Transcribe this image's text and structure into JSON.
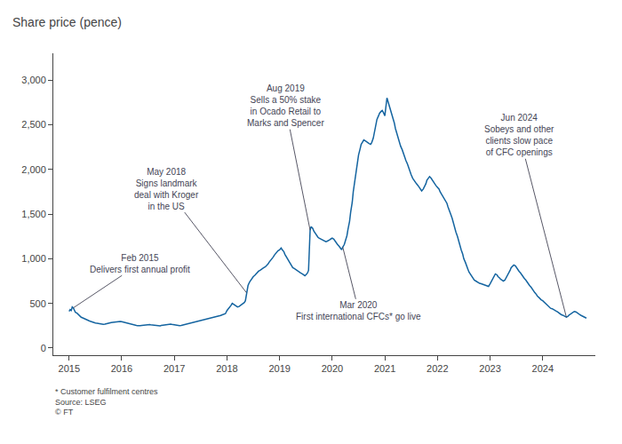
{
  "chart_data": {
    "type": "line",
    "title": "Share price (pence)",
    "color": "#1464a0",
    "grid": false,
    "xlim": [
      2014.7,
      2025.0
    ],
    "xticks": [
      2015,
      2016,
      2017,
      2018,
      2019,
      2020,
      2021,
      2022,
      2023,
      2024
    ],
    "ylim": [
      -80,
      3300
    ],
    "yticks": [
      0,
      500,
      {
        "value": 1000,
        "label": "1,000"
      },
      {
        "value": 1500,
        "label": "1,500"
      },
      {
        "value": 2000,
        "label": "2,000"
      },
      {
        "value": 2500,
        "label": "2,500"
      },
      {
        "value": 3000,
        "label": "3,000"
      }
    ],
    "annotations": [
      {
        "text": "Feb 2015\nDelivers first annual profit",
        "x": 2015.08,
        "y": 450
      },
      {
        "text": "May 2018\nSigns landmark\ndeal with Kroger\nin the US",
        "x": 2018.37,
        "y": 620
      },
      {
        "text": "Aug 2019\nSells a 50% stake\nin Ocado Retail to\nMarks and Spencer",
        "x": 2019.58,
        "y": 1320
      },
      {
        "text": "Mar 2020\nFirst international CFCs* go live",
        "x": 2020.2,
        "y": 1130
      },
      {
        "text": "Jun 2024\nSobeys and other\nclients slow pace\nof CFC openings",
        "x": 2024.45,
        "y": 345
      }
    ],
    "footnotes": [
      "* Customer fulfilment centres",
      "Source: LSEG",
      "© FT"
    ],
    "x": [
      2015.0,
      2015.02,
      2015.04,
      2015.06,
      2015.08,
      2015.1,
      2015.12,
      2015.15,
      2015.18,
      2015.2,
      2015.23,
      2015.25,
      2015.28,
      2015.3,
      2015.33,
      2015.35,
      2015.38,
      2015.4,
      2015.42,
      2015.45,
      2015.48,
      2015.5,
      2015.53,
      2015.55,
      2015.58,
      2015.6,
      2015.63,
      2015.65,
      2015.68,
      2015.7,
      2015.73,
      2015.75,
      2015.78,
      2015.8,
      2015.83,
      2015.85,
      2015.88,
      2015.9,
      2015.92,
      2015.95,
      2015.97,
      2016.0,
      2016.03,
      2016.05,
      2016.08,
      2016.1,
      2016.13,
      2016.15,
      2016.18,
      2016.2,
      2016.23,
      2016.25,
      2016.28,
      2016.3,
      2016.33,
      2016.35,
      2016.38,
      2016.4,
      2016.43,
      2016.45,
      2016.48,
      2016.5,
      2016.53,
      2016.55,
      2016.58,
      2016.6,
      2016.63,
      2016.65,
      2016.68,
      2016.7,
      2016.73,
      2016.75,
      2016.78,
      2016.8,
      2016.83,
      2016.85,
      2016.88,
      2016.9,
      2016.93,
      2016.95,
      2016.97,
      2017.0,
      2017.03,
      2017.05,
      2017.08,
      2017.1,
      2017.13,
      2017.15,
      2017.18,
      2017.2,
      2017.23,
      2017.25,
      2017.28,
      2017.3,
      2017.33,
      2017.35,
      2017.38,
      2017.4,
      2017.43,
      2017.45,
      2017.48,
      2017.5,
      2017.53,
      2017.55,
      2017.58,
      2017.6,
      2017.63,
      2017.65,
      2017.68,
      2017.7,
      2017.73,
      2017.75,
      2017.78,
      2017.8,
      2017.83,
      2017.85,
      2017.88,
      2017.9,
      2017.93,
      2017.95,
      2017.97,
      2018.0,
      2018.03,
      2018.05,
      2018.08,
      2018.1,
      2018.13,
      2018.15,
      2018.18,
      2018.2,
      2018.23,
      2018.25,
      2018.28,
      2018.3,
      2018.33,
      2018.35,
      2018.37,
      2018.4,
      2018.43,
      2018.45,
      2018.48,
      2018.5,
      2018.53,
      2018.55,
      2018.58,
      2018.6,
      2018.63,
      2018.65,
      2018.68,
      2018.7,
      2018.73,
      2018.75,
      2018.78,
      2018.8,
      2018.83,
      2018.85,
      2018.88,
      2018.9,
      2018.93,
      2018.95,
      2018.97,
      2019.0,
      2019.03,
      2019.05,
      2019.08,
      2019.1,
      2019.13,
      2019.15,
      2019.18,
      2019.2,
      2019.23,
      2019.25,
      2019.28,
      2019.3,
      2019.33,
      2019.35,
      2019.38,
      2019.4,
      2019.43,
      2019.45,
      2019.48,
      2019.5,
      2019.53,
      2019.55,
      2019.58,
      2019.6,
      2019.63,
      2019.65,
      2019.68,
      2019.7,
      2019.73,
      2019.75,
      2019.78,
      2019.8,
      2019.83,
      2019.85,
      2019.88,
      2019.9,
      2019.93,
      2019.95,
      2019.97,
      2020.0,
      2020.03,
      2020.05,
      2020.08,
      2020.1,
      2020.13,
      2020.15,
      2020.18,
      2020.2,
      2020.23,
      2020.25,
      2020.28,
      2020.3,
      2020.33,
      2020.35,
      2020.38,
      2020.4,
      2020.43,
      2020.45,
      2020.48,
      2020.5,
      2020.53,
      2020.55,
      2020.58,
      2020.6,
      2020.63,
      2020.65,
      2020.68,
      2020.7,
      2020.73,
      2020.75,
      2020.78,
      2020.8,
      2020.83,
      2020.85,
      2020.88,
      2020.9,
      2020.93,
      2020.95,
      2020.97,
      2021.0,
      2021.02,
      2021.04,
      2021.06,
      2021.08,
      2021.1,
      2021.13,
      2021.15,
      2021.18,
      2021.2,
      2021.23,
      2021.25,
      2021.28,
      2021.3,
      2021.33,
      2021.35,
      2021.38,
      2021.4,
      2021.43,
      2021.45,
      2021.48,
      2021.5,
      2021.53,
      2021.55,
      2021.58,
      2021.6,
      2021.63,
      2021.65,
      2021.68,
      2021.7,
      2021.73,
      2021.75,
      2021.78,
      2021.8,
      2021.83,
      2021.85,
      2021.88,
      2021.9,
      2021.93,
      2021.95,
      2021.97,
      2022.0,
      2022.03,
      2022.05,
      2022.08,
      2022.1,
      2022.13,
      2022.15,
      2022.18,
      2022.2,
      2022.23,
      2022.25,
      2022.28,
      2022.3,
      2022.33,
      2022.35,
      2022.38,
      2022.4,
      2022.43,
      2022.45,
      2022.48,
      2022.5,
      2022.53,
      2022.55,
      2022.58,
      2022.6,
      2022.63,
      2022.65,
      2022.68,
      2022.7,
      2022.73,
      2022.75,
      2022.78,
      2022.8,
      2022.83,
      2022.85,
      2022.88,
      2022.9,
      2022.93,
      2022.95,
      2022.97,
      2023.0,
      2023.03,
      2023.05,
      2023.08,
      2023.1,
      2023.13,
      2023.15,
      2023.18,
      2023.2,
      2023.23,
      2023.25,
      2023.28,
      2023.3,
      2023.33,
      2023.35,
      2023.38,
      2023.4,
      2023.43,
      2023.45,
      2023.48,
      2023.5,
      2023.53,
      2023.55,
      2023.58,
      2023.6,
      2023.63,
      2023.65,
      2023.68,
      2023.7,
      2023.73,
      2023.75,
      2023.78,
      2023.8,
      2023.83,
      2023.85,
      2023.88,
      2023.9,
      2023.93,
      2023.95,
      2023.97,
      2024.0,
      2024.03,
      2024.05,
      2024.08,
      2024.1,
      2024.13,
      2024.15,
      2024.18,
      2024.2,
      2024.23,
      2024.25,
      2024.28,
      2024.3,
      2024.33,
      2024.35,
      2024.38,
      2024.4,
      2024.43,
      2024.45,
      2024.48,
      2024.5,
      2024.53,
      2024.55,
      2024.58,
      2024.6,
      2024.63,
      2024.65,
      2024.68,
      2024.7,
      2024.73,
      2024.75,
      2024.78,
      2024.8,
      2024.83
    ],
    "values": [
      410,
      430,
      420,
      460,
      450,
      430,
      400,
      390,
      370,
      355,
      345,
      340,
      330,
      325,
      318,
      312,
      305,
      300,
      295,
      290,
      285,
      280,
      278,
      275,
      272,
      270,
      268,
      265,
      268,
      272,
      275,
      278,
      282,
      285,
      288,
      290,
      295,
      298,
      300,
      302,
      298,
      295,
      290,
      285,
      280,
      275,
      272,
      268,
      265,
      262,
      258,
      255,
      252,
      250,
      248,
      250,
      253,
      255,
      258,
      260,
      262,
      265,
      263,
      260,
      258,
      255,
      252,
      250,
      248,
      245,
      248,
      252,
      255,
      258,
      262,
      265,
      268,
      272,
      268,
      265,
      262,
      260,
      258,
      255,
      252,
      250,
      252,
      255,
      258,
      262,
      265,
      268,
      272,
      275,
      278,
      282,
      285,
      290,
      295,
      300,
      305,
      308,
      312,
      315,
      318,
      322,
      325,
      328,
      332,
      335,
      338,
      342,
      345,
      350,
      355,
      360,
      365,
      370,
      375,
      380,
      385,
      420,
      440,
      460,
      480,
      500,
      490,
      480,
      470,
      460,
      465,
      475,
      485,
      495,
      510,
      530,
      620,
      700,
      740,
      760,
      780,
      800,
      815,
      830,
      845,
      860,
      870,
      880,
      890,
      900,
      910,
      920,
      940,
      960,
      980,
      1000,
      1020,
      1040,
      1060,
      1080,
      1090,
      1100,
      1120,
      1100,
      1080,
      1050,
      1020,
      990,
      960,
      940,
      920,
      900,
      890,
      880,
      870,
      860,
      850,
      840,
      830,
      820,
      810,
      820,
      840,
      870,
      1320,
      1360,
      1340,
      1310,
      1280,
      1260,
      1240,
      1230,
      1220,
      1210,
      1200,
      1195,
      1190,
      1195,
      1200,
      1210,
      1220,
      1230,
      1220,
      1200,
      1180,
      1160,
      1140,
      1120,
      1100,
      1130,
      1160,
      1200,
      1260,
      1330,
      1420,
      1520,
      1630,
      1750,
      1870,
      1980,
      2080,
      2160,
      2230,
      2280,
      2310,
      2330,
      2320,
      2310,
      2300,
      2290,
      2280,
      2300,
      2350,
      2420,
      2500,
      2560,
      2600,
      2630,
      2650,
      2660,
      2640,
      2600,
      2700,
      2800,
      2760,
      2720,
      2680,
      2640,
      2580,
      2520,
      2460,
      2400,
      2350,
      2300,
      2260,
      2220,
      2180,
      2140,
      2100,
      2060,
      2020,
      1980,
      1940,
      1900,
      1880,
      1860,
      1840,
      1820,
      1800,
      1780,
      1760,
      1780,
      1800,
      1840,
      1880,
      1900,
      1920,
      1900,
      1880,
      1860,
      1840,
      1820,
      1800,
      1780,
      1750,
      1720,
      1700,
      1680,
      1650,
      1620,
      1580,
      1540,
      1500,
      1450,
      1400,
      1350,
      1300,
      1250,
      1200,
      1150,
      1100,
      1050,
      1000,
      960,
      920,
      880,
      850,
      820,
      800,
      780,
      760,
      750,
      740,
      730,
      725,
      720,
      715,
      710,
      705,
      700,
      695,
      690,
      720,
      750,
      780,
      810,
      830,
      820,
      800,
      785,
      770,
      760,
      750,
      760,
      780,
      810,
      840,
      870,
      900,
      920,
      930,
      920,
      900,
      880,
      860,
      840,
      820,
      800,
      780,
      760,
      740,
      720,
      700,
      680,
      660,
      640,
      620,
      600,
      580,
      565,
      550,
      540,
      530,
      515,
      500,
      485,
      470,
      455,
      445,
      440,
      435,
      425,
      415,
      405,
      395,
      385,
      375,
      368,
      360,
      352,
      345,
      355,
      370,
      380,
      390,
      400,
      410,
      405,
      395,
      385,
      375,
      365,
      358,
      350,
      342,
      335
    ]
  }
}
